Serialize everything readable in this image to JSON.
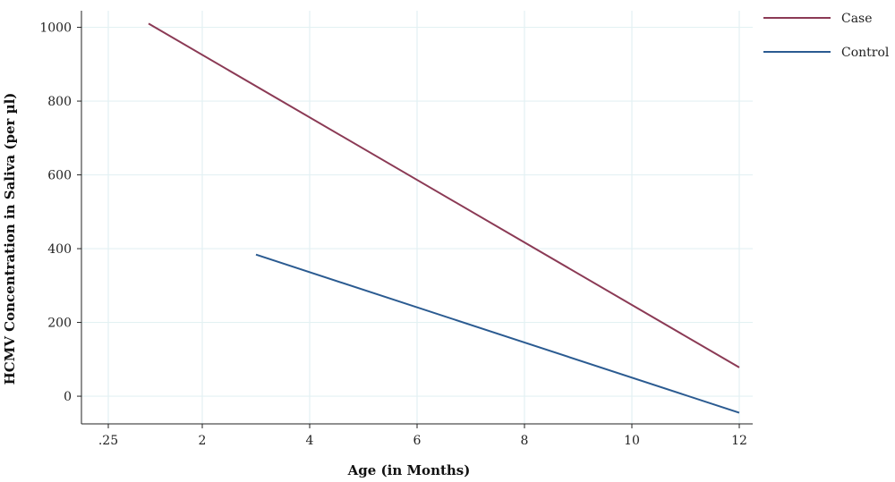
{
  "chart_data": {
    "type": "line",
    "xlabel": "Age (in Months)",
    "ylabel": "HCMV Concentration in Saliva (per µl)",
    "xlim": [
      -0.25,
      12.25
    ],
    "ylim": [
      -75,
      1045
    ],
    "x_ticks": [
      {
        "value": 0.25,
        "label": ".25"
      },
      {
        "value": 2,
        "label": "2"
      },
      {
        "value": 4,
        "label": "4"
      },
      {
        "value": 6,
        "label": "6"
      },
      {
        "value": 8,
        "label": "8"
      },
      {
        "value": 10,
        "label": "10"
      },
      {
        "value": 12,
        "label": "12"
      }
    ],
    "y_ticks": [
      {
        "value": 0,
        "label": "0"
      },
      {
        "value": 200,
        "label": "200"
      },
      {
        "value": 400,
        "label": "400"
      },
      {
        "value": 600,
        "label": "600"
      },
      {
        "value": 800,
        "label": "800"
      },
      {
        "value": 1000,
        "label": "1000"
      }
    ],
    "grid": true,
    "legend_position": "right",
    "series": [
      {
        "name": "Case",
        "color": "#8b3a55",
        "points": [
          [
            1.0,
            1010
          ],
          [
            12,
            78
          ]
        ]
      },
      {
        "name": "Control",
        "color": "#2b5b91",
        "points": [
          [
            3.0,
            384
          ],
          [
            12,
            -45
          ]
        ]
      }
    ]
  }
}
